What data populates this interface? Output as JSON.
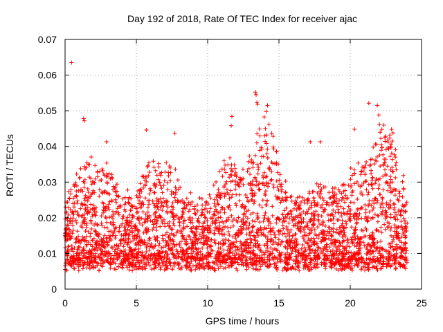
{
  "chart_data": {
    "type": "scatter",
    "title": "Day 192 of 2018, Rate Of TEC Index for receiver ajac",
    "xlabel": "GPS time / hours",
    "ylabel": "ROTI / TECUs",
    "xlim": [
      0,
      25
    ],
    "ylim": [
      0,
      0.07
    ],
    "xticks": [
      0,
      5,
      10,
      15,
      20,
      25
    ],
    "yticks": [
      0,
      0.01,
      0.02,
      0.03,
      0.04,
      0.05,
      0.06,
      0.07
    ],
    "xtick_labels": [
      "0",
      "5",
      "10",
      "15",
      "20",
      "25"
    ],
    "ytick_labels": [
      "0",
      "0.01",
      "0.02",
      "0.03",
      "0.04",
      "0.05",
      "0.06",
      "0.07"
    ],
    "grid": true,
    "marker": "+",
    "color": "#ff0000",
    "series": [
      {
        "name": "ROTI",
        "x_range": [
          0,
          24
        ],
        "baseline_range": [
          0.005,
          0.03
        ],
        "notable_points": [
          {
            "x": 0.45,
            "y": 0.0635
          },
          {
            "x": 1.3,
            "y": 0.0478
          },
          {
            "x": 1.35,
            "y": 0.0472
          },
          {
            "x": 2.9,
            "y": 0.0413
          },
          {
            "x": 5.7,
            "y": 0.0446
          },
          {
            "x": 7.7,
            "y": 0.0437
          },
          {
            "x": 11.7,
            "y": 0.0484
          },
          {
            "x": 11.65,
            "y": 0.0458
          },
          {
            "x": 13.35,
            "y": 0.0552
          },
          {
            "x": 13.4,
            "y": 0.0545
          },
          {
            "x": 13.45,
            "y": 0.0523
          },
          {
            "x": 13.5,
            "y": 0.0518
          },
          {
            "x": 14.2,
            "y": 0.0515
          },
          {
            "x": 14.1,
            "y": 0.0498
          },
          {
            "x": 14.3,
            "y": 0.0462
          },
          {
            "x": 17.2,
            "y": 0.0413
          },
          {
            "x": 17.9,
            "y": 0.0413
          },
          {
            "x": 20.3,
            "y": 0.0448
          },
          {
            "x": 21.3,
            "y": 0.0521
          },
          {
            "x": 21.9,
            "y": 0.0515
          },
          {
            "x": 22.0,
            "y": 0.0488
          },
          {
            "x": 22.05,
            "y": 0.0462
          },
          {
            "x": 22.9,
            "y": 0.0448
          },
          {
            "x": 23.0,
            "y": 0.0438
          }
        ]
      }
    ]
  }
}
